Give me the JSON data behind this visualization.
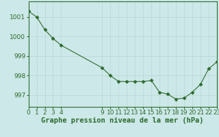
{
  "x": [
    0,
    1,
    2,
    3,
    4,
    9,
    10,
    11,
    12,
    13,
    14,
    15,
    16,
    17,
    18,
    19,
    20,
    21,
    22,
    23
  ],
  "y": [
    1001.3,
    1001.0,
    1000.35,
    999.9,
    999.55,
    998.4,
    998.0,
    997.7,
    997.7,
    997.7,
    997.7,
    997.75,
    997.15,
    997.05,
    996.8,
    996.85,
    997.15,
    997.55,
    998.35,
    998.7
  ],
  "line_color": "#2d6a2d",
  "marker_color": "#2d6a2d",
  "bg_color": "#cce8e8",
  "grid_color": "#b8d4d4",
  "ylabel_ticks": [
    997,
    998,
    999,
    1000,
    1001
  ],
  "xlabel_ticks": [
    0,
    1,
    2,
    3,
    4,
    9,
    10,
    11,
    12,
    13,
    14,
    15,
    16,
    17,
    18,
    19,
    20,
    21,
    22,
    23
  ],
  "xlabel": "Graphe pression niveau de la mer (hPa)",
  "ylim": [
    996.4,
    1001.8
  ],
  "xlim": [
    0,
    23
  ],
  "tick_color": "#2d6a2d",
  "font_size": 6.5,
  "xlabel_font_size": 7.5
}
